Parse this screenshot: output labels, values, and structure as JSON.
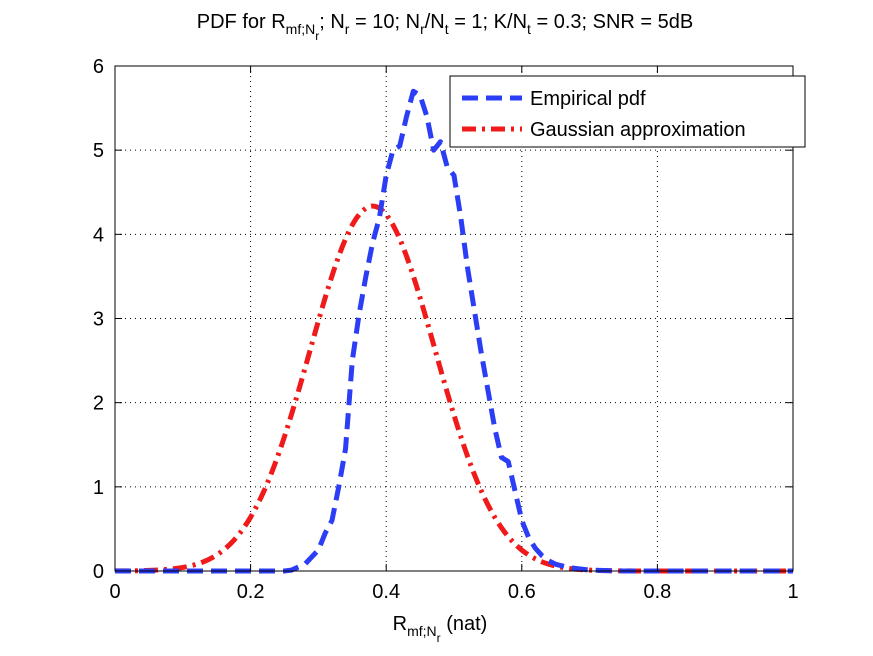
{
  "chart_data": {
    "type": "line",
    "title": {
      "parts": [
        {
          "text": "PDF for R",
          "style": "normal"
        },
        {
          "text": "mf;N",
          "style": "sub"
        },
        {
          "text": "r",
          "style": "subsub"
        },
        {
          "text": "; N",
          "style": "normal"
        },
        {
          "text": "r",
          "style": "sub"
        },
        {
          "text": " = 10; N",
          "style": "normal"
        },
        {
          "text": "r",
          "style": "sub"
        },
        {
          "text": "/N",
          "style": "normal"
        },
        {
          "text": "t",
          "style": "sub"
        },
        {
          "text": " = 1; K/N",
          "style": "normal"
        },
        {
          "text": "t",
          "style": "sub"
        },
        {
          "text": " = 0.3; SNR = 5dB",
          "style": "normal"
        }
      ]
    },
    "xlabel": {
      "parts": [
        {
          "text": "R",
          "style": "normal"
        },
        {
          "text": "mf;N",
          "style": "sub"
        },
        {
          "text": "r",
          "style": "subsub"
        },
        {
          "text": " (nat)",
          "style": "normal"
        }
      ]
    },
    "ylabel": "",
    "xlim": [
      0,
      1
    ],
    "ylim": [
      0,
      6
    ],
    "x_ticks": [
      0,
      0.2,
      0.4,
      0.6,
      0.8,
      1
    ],
    "x_tick_labels": [
      "0",
      "0.2",
      "0.4",
      "0.6",
      "0.8",
      "1"
    ],
    "y_ticks": [
      0,
      1,
      2,
      3,
      4,
      5,
      6
    ],
    "y_tick_labels": [
      "0",
      "1",
      "2",
      "3",
      "4",
      "5",
      "6"
    ],
    "grid": true,
    "legend_position": "top-right",
    "series": [
      {
        "name": "Empirical pdf",
        "color": "#2b3df5",
        "style": "dashed",
        "points": [
          [
            0,
            0
          ],
          [
            0.1,
            0
          ],
          [
            0.2,
            0
          ],
          [
            0.25,
            0
          ],
          [
            0.26,
            0.01
          ],
          [
            0.28,
            0.08
          ],
          [
            0.3,
            0.25
          ],
          [
            0.31,
            0.45
          ],
          [
            0.32,
            0.6
          ],
          [
            0.33,
            1.0
          ],
          [
            0.34,
            1.45
          ],
          [
            0.35,
            2.5
          ],
          [
            0.36,
            3.05
          ],
          [
            0.37,
            3.5
          ],
          [
            0.38,
            3.9
          ],
          [
            0.39,
            4.2
          ],
          [
            0.4,
            4.7
          ],
          [
            0.41,
            5.0
          ],
          [
            0.42,
            5.05
          ],
          [
            0.43,
            5.4
          ],
          [
            0.44,
            5.7
          ],
          [
            0.45,
            5.65
          ],
          [
            0.46,
            5.4
          ],
          [
            0.47,
            5.0
          ],
          [
            0.48,
            5.1
          ],
          [
            0.49,
            4.8
          ],
          [
            0.5,
            4.7
          ],
          [
            0.51,
            4.2
          ],
          [
            0.52,
            3.6
          ],
          [
            0.53,
            3.1
          ],
          [
            0.54,
            2.6
          ],
          [
            0.55,
            2.15
          ],
          [
            0.56,
            1.7
          ],
          [
            0.57,
            1.35
          ],
          [
            0.58,
            1.3
          ],
          [
            0.59,
            0.95
          ],
          [
            0.6,
            0.6
          ],
          [
            0.61,
            0.4
          ],
          [
            0.62,
            0.27
          ],
          [
            0.63,
            0.18
          ],
          [
            0.64,
            0.12
          ],
          [
            0.65,
            0.08
          ],
          [
            0.67,
            0.04
          ],
          [
            0.7,
            0.01
          ],
          [
            0.75,
            0
          ],
          [
            0.8,
            0
          ],
          [
            0.9,
            0
          ],
          [
            1,
            0
          ]
        ]
      },
      {
        "name": "Gaussian approximation",
        "color": "#f01a1a",
        "style": "dashdot",
        "mean": 0.38,
        "std": 0.092,
        "x_range": [
          0,
          1
        ]
      }
    ]
  }
}
